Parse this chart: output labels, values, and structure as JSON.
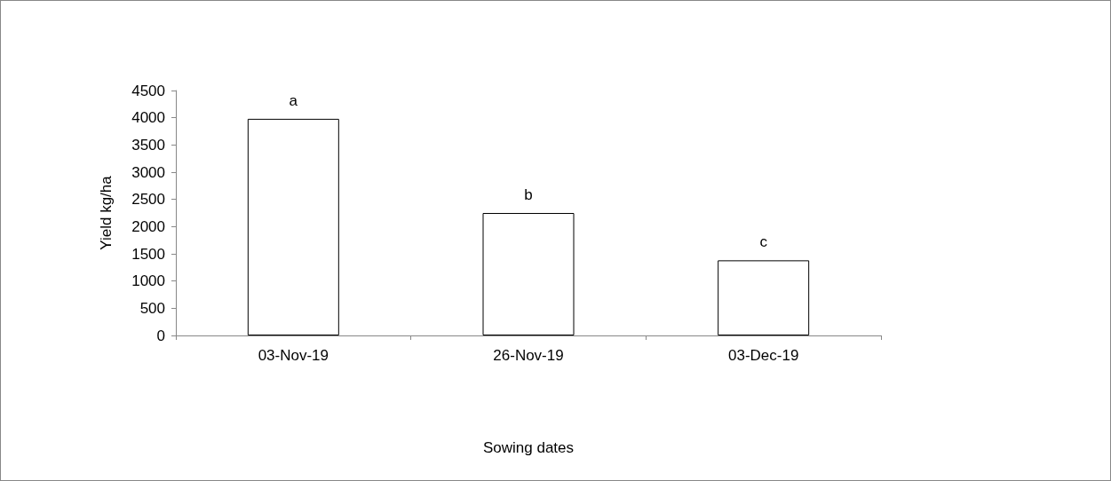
{
  "chart_data": {
    "type": "bar",
    "xlabel": "Sowing dates",
    "ylabel": "Yield kg/ha",
    "categories": [
      "03-Nov-19",
      "26-Nov-19",
      "03-Dec-19"
    ],
    "values": [
      3980,
      2250,
      1380
    ],
    "color": "#ffffff",
    "ylim": [
      0,
      4500
    ],
    "yticks": [
      0,
      500,
      1000,
      1500,
      2000,
      2500,
      3000,
      3500,
      4000,
      4500
    ],
    "grid": false,
    "annotations": [
      {
        "text": "a",
        "x": "03-Nov-19",
        "y": 3980
      },
      {
        "text": "b",
        "x": "26-Nov-19",
        "y": 2250
      },
      {
        "text": "c",
        "x": "03-Dec-19",
        "y": 1380
      }
    ]
  }
}
